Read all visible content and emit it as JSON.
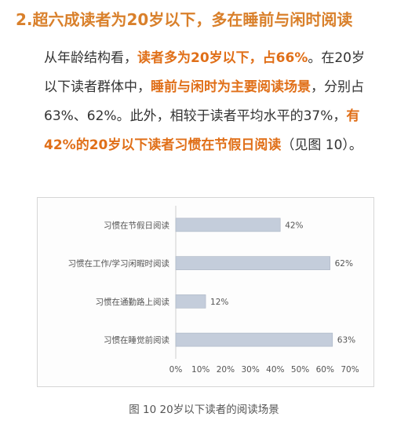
{
  "heading": "2.超六成读者为20岁以下，多在睡前与闲时阅读",
  "paragraph": {
    "p1": "从年龄结构看，",
    "h1": "读者多为20岁以下，占66%",
    "p2": "。在20岁以下读者群体中，",
    "h2": "睡前与闲时为主要阅读场景",
    "p3": "，分别占63%、62%。此外，相较于读者平均水平的37%，",
    "h3": "有42%的20岁以下读者习惯在节假日阅读",
    "p4": "（见图 10）。"
  },
  "caption": "图 10 20岁以下读者的阅读场景",
  "colors": {
    "heading": "#d9802b",
    "highlight": "#e06f18",
    "bar": "#c4cddb",
    "bar_stroke": "#aab4c4",
    "axis": "#cfcfcf"
  },
  "chart_data": {
    "type": "bar",
    "orientation": "horizontal",
    "categories": [
      "习惯在节假日阅读",
      "习惯在工作/学习闲暇时阅读",
      "习惯在通勤路上阅读",
      "习惯在睡觉前阅读"
    ],
    "values": [
      42,
      62,
      12,
      63
    ],
    "data_labels": [
      "42%",
      "62%",
      "12%",
      "63%"
    ],
    "x_ticks": [
      "0%",
      "10%",
      "20%",
      "30%",
      "40%",
      "50%",
      "60%",
      "70%"
    ],
    "xlim": [
      0,
      70
    ],
    "grid": false,
    "legend": "none"
  }
}
